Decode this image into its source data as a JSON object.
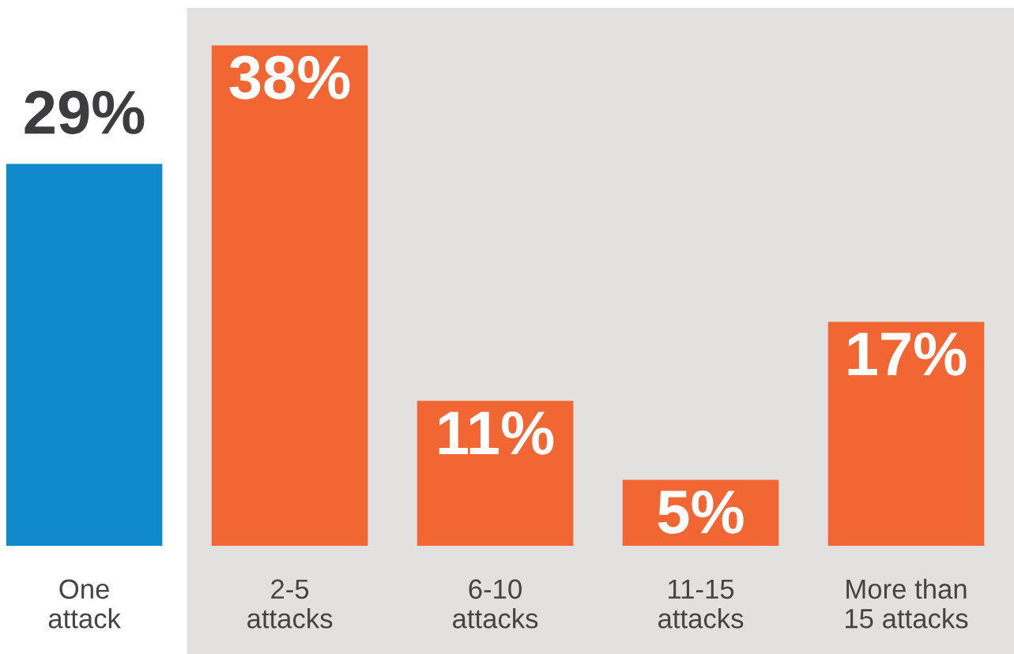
{
  "chart_data": {
    "type": "bar",
    "categories": [
      "One\nattack",
      "2-5\nattacks",
      "6-10\nattacks",
      "11-15\nattacks",
      "More than\n15 attacks"
    ],
    "values": [
      29,
      38,
      11,
      5,
      17
    ],
    "value_labels": [
      "29%",
      "38%",
      "11%",
      "5%",
      "17%"
    ],
    "colors": [
      "#118acb",
      "#f26633",
      "#f26633",
      "#f26633",
      "#f26633"
    ],
    "bands": [
      {
        "axis": "x",
        "from": "2-5\nattacks",
        "to": "More than\n15 attacks",
        "label": null,
        "color": "#e2e1e0"
      }
    ],
    "grid": false,
    "legend": false
  }
}
